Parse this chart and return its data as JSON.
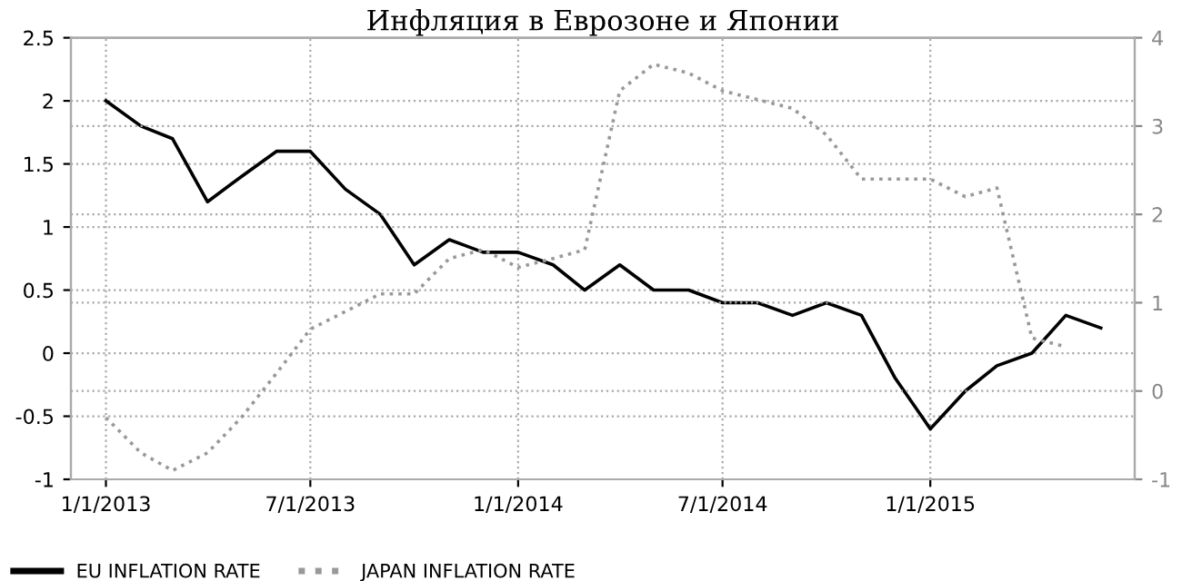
{
  "chart_data": {
    "type": "line",
    "title": "Инфляция в Еврозоне и Японии",
    "x": [
      "2013-01",
      "2013-02",
      "2013-03",
      "2013-04",
      "2013-05",
      "2013-06",
      "2013-07",
      "2013-08",
      "2013-09",
      "2013-10",
      "2013-11",
      "2013-12",
      "2014-01",
      "2014-02",
      "2014-03",
      "2014-04",
      "2014-05",
      "2014-06",
      "2014-07",
      "2014-08",
      "2014-09",
      "2014-10",
      "2014-11",
      "2014-12",
      "2015-01",
      "2015-02",
      "2015-03",
      "2015-04",
      "2015-05",
      "2015-06"
    ],
    "series": [
      {
        "name": "EU INFLATION RATE",
        "color": "#000000",
        "line_style": "solid",
        "values": [
          2.0,
          1.8,
          1.7,
          1.2,
          1.4,
          1.6,
          1.6,
          1.3,
          1.1,
          0.7,
          0.9,
          0.8,
          0.8,
          0.7,
          0.5,
          0.7,
          0.5,
          0.5,
          0.4,
          0.4,
          0.3,
          0.4,
          0.3,
          -0.2,
          -0.6,
          -0.3,
          -0.1,
          0.0,
          0.3,
          0.2
        ]
      },
      {
        "name": "JAPAN INFLATION RATE",
        "color": "#999999",
        "line_style": "dotted",
        "axis": "y2",
        "values": [
          -0.3,
          -0.7,
          -0.9,
          -0.7,
          -0.3,
          0.2,
          0.7,
          0.9,
          1.1,
          1.1,
          1.5,
          1.6,
          1.4,
          1.5,
          1.6,
          3.4,
          3.7,
          3.6,
          3.4,
          3.3,
          3.2,
          2.9,
          2.4,
          2.4,
          2.4,
          2.2,
          2.3,
          0.6,
          0.5,
          null
        ]
      }
    ],
    "xlim": [
      "2012-12-01",
      "2015-07-01"
    ],
    "xticks": [
      {
        "value": "2013-01-01",
        "label": "1/1/2013"
      },
      {
        "value": "2013-07-01",
        "label": "7/1/2013"
      },
      {
        "value": "2014-01-01",
        "label": "1/1/2014"
      },
      {
        "value": "2014-07-01",
        "label": "7/1/2014"
      },
      {
        "value": "2015-01-01",
        "label": "1/1/2015"
      }
    ],
    "ylim": [
      -1,
      2.5
    ],
    "yticks": [
      -1,
      -0.5,
      0,
      0.5,
      1,
      1.5,
      2,
      2.5
    ],
    "y2lim": [
      -1,
      4
    ],
    "y2ticks": [
      -1,
      0,
      1,
      2,
      3,
      4
    ],
    "grid": true,
    "legend": "bottom"
  }
}
